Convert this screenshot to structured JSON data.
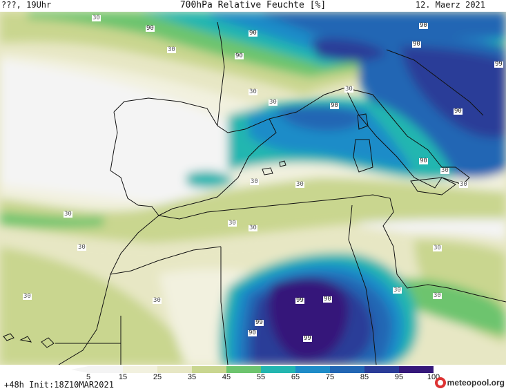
{
  "header": {
    "left": "???, 19Uhr",
    "title": "700hPa Relative Feuchte [%]",
    "date": "12. Maerz 2021"
  },
  "colors": {
    "lvl5": "#f4f4f4",
    "lvl15": "#f2f1df",
    "lvl25": "#e7e7c4",
    "lvl35": "#c9d68f",
    "lvl45": "#6dc46e",
    "lvl55": "#23b6b0",
    "lvl65": "#1e8cc8",
    "lvl75": "#2266b4",
    "lvl85": "#2a3c98",
    "lvl95": "#35187a",
    "coast": "#111111"
  },
  "contour_labels": [
    {
      "text": "30"
    },
    {
      "text": "90"
    },
    {
      "text": "90"
    },
    {
      "text": "30"
    },
    {
      "text": "90"
    },
    {
      "text": "90"
    },
    {
      "text": "90"
    },
    {
      "text": "99"
    },
    {
      "text": "30"
    },
    {
      "text": "30"
    },
    {
      "text": "30"
    },
    {
      "text": "90"
    },
    {
      "text": "90"
    },
    {
      "text": "90"
    },
    {
      "text": "30"
    },
    {
      "text": "30"
    },
    {
      "text": "30"
    },
    {
      "text": "30"
    },
    {
      "text": "30"
    },
    {
      "text": "30"
    },
    {
      "text": "30"
    },
    {
      "text": "30"
    },
    {
      "text": "30"
    },
    {
      "text": "30"
    },
    {
      "text": "99"
    },
    {
      "text": "90"
    },
    {
      "text": "99"
    },
    {
      "text": "90"
    },
    {
      "text": "99"
    },
    {
      "text": "30"
    },
    {
      "text": "30"
    },
    {
      "text": "30"
    }
  ],
  "colorbar": {
    "ticks": [
      "5",
      "15",
      "25",
      "35",
      "45",
      "55",
      "65",
      "75",
      "85",
      "95",
      "100"
    ]
  },
  "footer": {
    "init": "+48h Init:18Z10MAR2021",
    "logo": "meteopool.org"
  }
}
